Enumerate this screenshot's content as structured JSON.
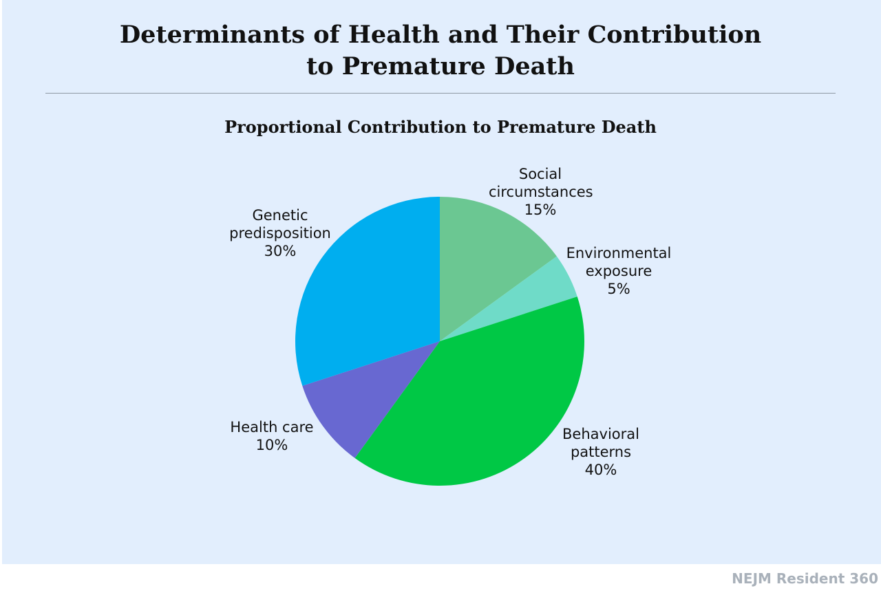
{
  "page": {
    "title_line1": "Determinants of Health and Their Contribution",
    "title_line2": "to Premature Death",
    "footer_brand": "NEJM Resident 360",
    "background_color": "#e2eefd"
  },
  "chart_data": {
    "type": "pie",
    "title": "Proportional Contribution to Premature Death",
    "start_angle_deg": 0,
    "direction": "clockwise",
    "slices": [
      {
        "label_lines": [
          "Social",
          "circumstances"
        ],
        "percent_label": "15%",
        "value": 15,
        "color": "#6bc792"
      },
      {
        "label_lines": [
          "Environmental",
          "exposure"
        ],
        "percent_label": "5%",
        "value": 5,
        "color": "#6fdbc8"
      },
      {
        "label_lines": [
          "Behavioral",
          "patterns"
        ],
        "percent_label": "40%",
        "value": 40,
        "color": "#00c845"
      },
      {
        "label_lines": [
          "Health care"
        ],
        "percent_label": "10%",
        "value": 10,
        "color": "#6868d1"
      },
      {
        "label_lines": [
          "Genetic",
          "predisposition"
        ],
        "percent_label": "30%",
        "value": 30,
        "color": "#00aeef"
      }
    ]
  }
}
